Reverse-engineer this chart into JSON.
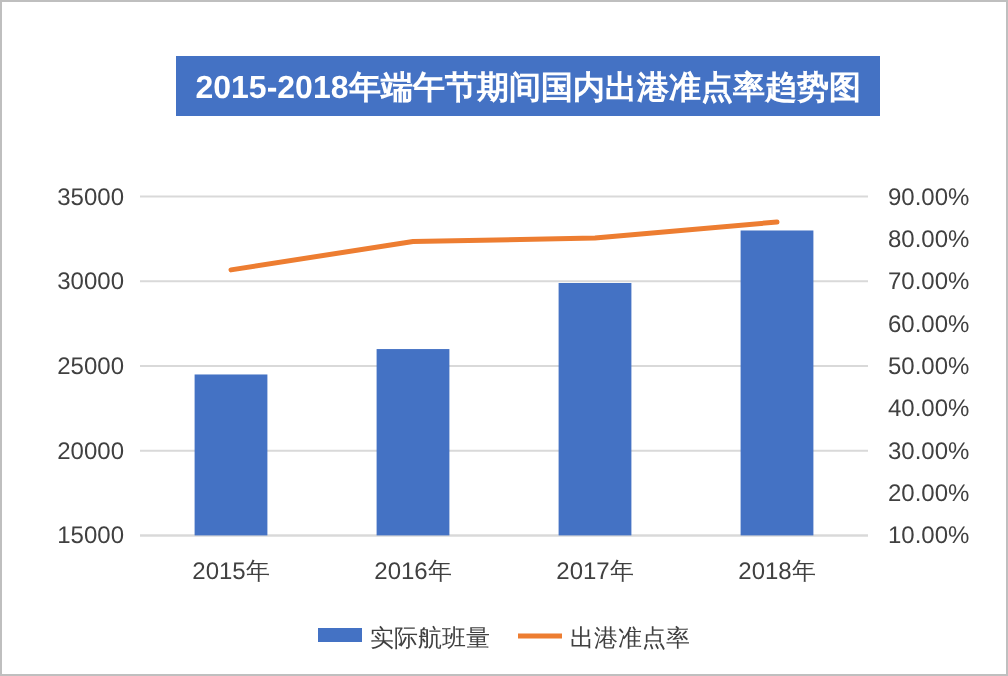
{
  "chart_data": {
    "type": "bar",
    "title": "2015-2018年端午节期间国内出港准点率趋势图",
    "categories": [
      "2015年",
      "2016年",
      "2017年",
      "2018年"
    ],
    "series": [
      {
        "name": "实际航班量",
        "color": "#4472c4",
        "values": [
          24500,
          26000,
          29900,
          33000
        ]
      },
      {
        "name": "出港准点率",
        "type": "line",
        "axis": "y2",
        "color": "#ed7d31",
        "values": [
          72.7,
          79.4,
          80.2,
          84.0
        ]
      }
    ],
    "ylim": [
      15000,
      35000
    ],
    "yticks": [
      15000,
      20000,
      25000,
      30000,
      35000
    ],
    "y2lim": [
      10,
      90
    ],
    "y2ticks": [
      {
        "value": 10,
        "label": "10.00%"
      },
      {
        "value": 20,
        "label": "20.00%"
      },
      {
        "value": 30,
        "label": "30.00%"
      },
      {
        "value": 40,
        "label": "40.00%"
      },
      {
        "value": 50,
        "label": "50.00%"
      },
      {
        "value": 60,
        "label": "60.00%"
      },
      {
        "value": 70,
        "label": "70.00%"
      },
      {
        "value": 80,
        "label": "80.00%"
      },
      {
        "value": 90,
        "label": "90.00%"
      }
    ],
    "grid": "y",
    "legend": "bottom",
    "marker": "none"
  }
}
